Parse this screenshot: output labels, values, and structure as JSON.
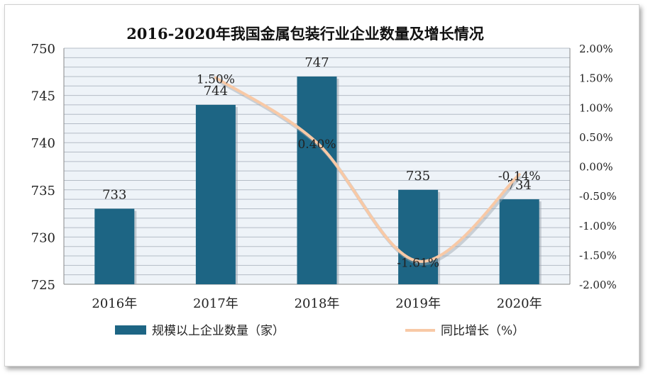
{
  "chart_data": {
    "type": "bar+line",
    "title": "2016-2020年我国金属包装行业企业数量及增长情况",
    "categories": [
      "2016年",
      "2017年",
      "2018年",
      "2019年",
      "2020年"
    ],
    "series": [
      {
        "name": "规模以上企业数量（家）",
        "type": "bar",
        "axis": "left",
        "values": [
          733,
          744,
          747,
          735,
          734
        ],
        "data_labels": [
          "733",
          "744",
          "747",
          "735",
          "734"
        ],
        "color": "#1d6584"
      },
      {
        "name": "同比增长（%）",
        "type": "line",
        "axis": "right",
        "values": [
          null,
          1.5,
          0.4,
          -1.61,
          -0.14
        ],
        "data_labels": [
          "",
          "1.50%",
          "0.40%",
          "-1.61%",
          "-0.14%"
        ],
        "color": "#f8c9a6"
      }
    ],
    "y_left": {
      "min": 725,
      "max": 750,
      "step": 5,
      "ticks": [
        "725",
        "730",
        "735",
        "740",
        "745",
        "750"
      ]
    },
    "y_right": {
      "min": -2.0,
      "max": 2.0,
      "step": 0.5,
      "ticks": [
        "-2.00%",
        "-1.50%",
        "-1.00%",
        "-0.50%",
        "0.00%",
        "0.50%",
        "1.00%",
        "1.50%",
        "2.00%"
      ]
    },
    "grid": true,
    "legend_position": "bottom",
    "colors": {
      "plot_background": "#eef3f8",
      "gridline": "#b4bcc6",
      "bar": "#1d6584",
      "line": "#f8c9a6"
    }
  }
}
